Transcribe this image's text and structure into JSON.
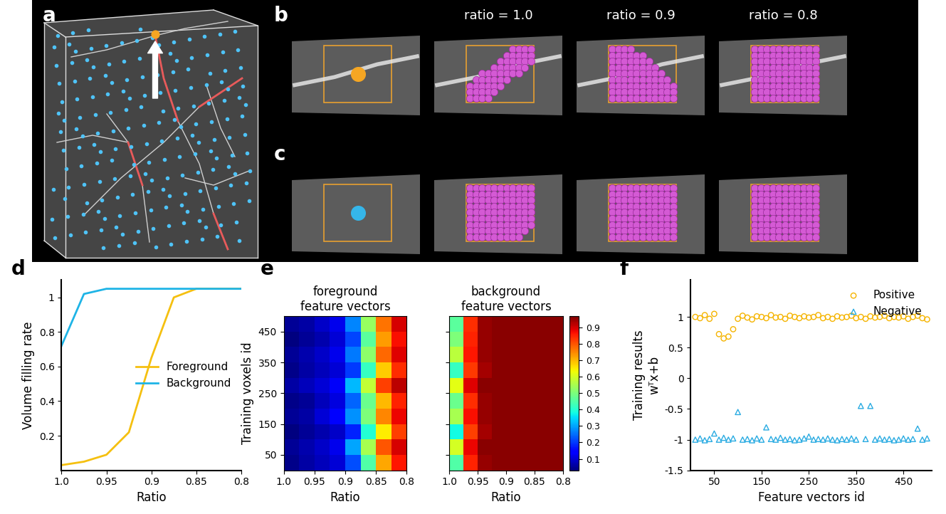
{
  "figure": {
    "panel_labels": [
      "a",
      "b",
      "c",
      "d",
      "e",
      "f"
    ],
    "column_titles": [
      "ratio = 1.0",
      "ratio = 0.9",
      "ratio = 0.8"
    ]
  },
  "chart_data": [
    {
      "type": "line",
      "xlabel": "Ratio",
      "ylabel": "Volume filling rate",
      "x": [
        1.0,
        0.975,
        0.95,
        0.925,
        0.9,
        0.875,
        0.85,
        0.825,
        0.8
      ],
      "series": [
        {
          "name": "Foreground",
          "color": "#f5c010",
          "values": [
            0.03,
            0.05,
            0.09,
            0.22,
            0.65,
            1.0,
            1.05,
            1.05,
            1.05
          ]
        },
        {
          "name": "Background",
          "color": "#1eb4e6",
          "values": [
            0.72,
            1.02,
            1.05,
            1.05,
            1.05,
            1.05,
            1.05,
            1.05,
            1.05
          ]
        }
      ],
      "xlim": [
        1.0,
        0.8
      ],
      "xticks": [
        1.0,
        0.95,
        0.9,
        0.85,
        0.8
      ],
      "ylim": [
        0,
        1.1
      ],
      "yticks": [
        0.2,
        0.4,
        0.6,
        0.8,
        1
      ],
      "legend": "center right"
    },
    {
      "type": "heatmap",
      "title": "foreground\nfeature vectors",
      "xlabel": "Ratio",
      "ylabel": "Training voxels id",
      "x_edges": [
        1.0,
        0.975,
        0.95,
        0.925,
        0.9,
        0.875,
        0.85,
        0.825,
        0.8
      ],
      "y_edges": [
        0,
        50,
        100,
        150,
        200,
        250,
        300,
        350,
        400,
        450,
        500
      ],
      "cells": [
        [
          0.04,
          0.06,
          0.08,
          0.1,
          0.22,
          0.45,
          0.72,
          0.86
        ],
        [
          0.05,
          0.07,
          0.09,
          0.12,
          0.3,
          0.55,
          0.8,
          0.9
        ],
        [
          0.03,
          0.05,
          0.07,
          0.09,
          0.18,
          0.4,
          0.65,
          0.82
        ],
        [
          0.05,
          0.06,
          0.1,
          0.14,
          0.28,
          0.5,
          0.75,
          0.88
        ],
        [
          0.04,
          0.05,
          0.08,
          0.11,
          0.24,
          0.48,
          0.7,
          0.85
        ],
        [
          0.06,
          0.08,
          0.1,
          0.13,
          0.32,
          0.58,
          0.82,
          0.92
        ],
        [
          0.04,
          0.06,
          0.08,
          0.1,
          0.2,
          0.42,
          0.68,
          0.84
        ],
        [
          0.05,
          0.07,
          0.09,
          0.12,
          0.26,
          0.52,
          0.78,
          0.89
        ],
        [
          0.03,
          0.05,
          0.07,
          0.1,
          0.21,
          0.46,
          0.73,
          0.87
        ],
        [
          0.05,
          0.06,
          0.09,
          0.12,
          0.27,
          0.53,
          0.77,
          0.9
        ]
      ],
      "color_range": [
        0.03,
        0.97
      ],
      "xlim": [
        1.0,
        0.8
      ],
      "xticks": [
        1.0,
        0.95,
        0.9,
        0.85,
        0.8
      ],
      "ylim": [
        0,
        500
      ],
      "yticks": [
        50,
        150,
        250,
        350,
        450
      ]
    },
    {
      "type": "heatmap",
      "title": "background\nfeature vectors",
      "xlabel": "Ratio",
      "x_edges": [
        1.0,
        0.975,
        0.95,
        0.925,
        0.9,
        0.875,
        0.85,
        0.825,
        0.8
      ],
      "y_edges": [
        0,
        50,
        100,
        150,
        200,
        250,
        300,
        350,
        400,
        450,
        500
      ],
      "cells": [
        [
          0.45,
          0.85,
          0.95,
          0.96,
          0.96,
          0.96,
          0.96,
          0.96
        ],
        [
          0.6,
          0.88,
          0.96,
          0.96,
          0.96,
          0.96,
          0.96,
          0.96
        ],
        [
          0.38,
          0.82,
          0.94,
          0.96,
          0.96,
          0.96,
          0.96,
          0.96
        ],
        [
          0.55,
          0.87,
          0.95,
          0.96,
          0.96,
          0.96,
          0.96,
          0.96
        ],
        [
          0.48,
          0.84,
          0.95,
          0.96,
          0.96,
          0.96,
          0.96,
          0.96
        ],
        [
          0.62,
          0.89,
          0.96,
          0.96,
          0.96,
          0.96,
          0.96,
          0.96
        ],
        [
          0.42,
          0.83,
          0.94,
          0.96,
          0.96,
          0.96,
          0.96,
          0.96
        ],
        [
          0.57,
          0.86,
          0.95,
          0.96,
          0.96,
          0.96,
          0.96,
          0.96
        ],
        [
          0.5,
          0.85,
          0.95,
          0.96,
          0.96,
          0.96,
          0.96,
          0.96
        ],
        [
          0.46,
          0.84,
          0.95,
          0.96,
          0.96,
          0.96,
          0.96,
          0.96
        ]
      ],
      "color_range": [
        0.03,
        0.97
      ],
      "colorbar_ticks": [
        0.1,
        0.2,
        0.3,
        0.4,
        0.5,
        0.6,
        0.7,
        0.8,
        0.9
      ],
      "xlim": [
        1.0,
        0.8
      ],
      "xticks": [
        1.0,
        0.95,
        0.9,
        0.85,
        0.8
      ],
      "ylim": [
        0,
        500
      ],
      "yticks": [
        50,
        150,
        250,
        350,
        450
      ],
      "tick_labels": "x"
    },
    {
      "type": "scatter",
      "xlabel": "Feature vectors id",
      "ylabel": "Training results\nwᵀx+b",
      "x": [
        10,
        20,
        30,
        40,
        50,
        60,
        70,
        80,
        90,
        100,
        110,
        120,
        130,
        140,
        150,
        160,
        170,
        180,
        190,
        200,
        210,
        220,
        230,
        240,
        250,
        260,
        270,
        280,
        290,
        300,
        310,
        320,
        330,
        340,
        350,
        360,
        370,
        380,
        390,
        400,
        410,
        420,
        430,
        440,
        450,
        460,
        470,
        480,
        490,
        500
      ],
      "series": [
        {
          "name": "Positive",
          "color": "#f5b400",
          "marker": "circle",
          "values": [
            1.0,
            0.98,
            1.03,
            0.97,
            1.05,
            0.72,
            0.65,
            0.68,
            0.8,
            0.97,
            1.02,
            0.99,
            0.96,
            1.01,
            1.0,
            0.98,
            1.03,
            0.99,
            1.0,
            0.97,
            1.02,
            1.0,
            0.98,
            1.01,
            0.99,
            1.0,
            1.03,
            0.98,
            1.0,
            0.97,
            1.01,
            0.99,
            1.0,
            1.02,
            0.98,
            1.0,
            0.97,
            1.01,
            0.99,
            1.0,
            1.02,
            0.98,
            1.0,
            0.99,
            1.01,
            0.97,
            1.0,
            1.02,
            0.98,
            0.96
          ]
        },
        {
          "name": "Negative",
          "color": "#29abe2",
          "marker": "triangle",
          "values": [
            -1.0,
            -0.98,
            -1.01,
            -0.99,
            -0.9,
            -1.0,
            -0.97,
            -1.0,
            -0.98,
            -0.55,
            -1.0,
            -0.99,
            -1.01,
            -0.98,
            -1.0,
            -0.8,
            -0.99,
            -1.0,
            -0.97,
            -1.0,
            -0.99,
            -1.01,
            -1.0,
            -0.98,
            -0.95,
            -1.0,
            -0.99,
            -1.0,
            -0.98,
            -1.0,
            -1.01,
            -0.99,
            -1.0,
            -0.98,
            -1.0,
            -0.45,
            -0.99,
            -0.45,
            -1.0,
            -0.98,
            -1.0,
            -0.99,
            -1.01,
            -1.0,
            -0.98,
            -1.0,
            -0.99,
            -0.82,
            -1.0,
            -0.98
          ]
        }
      ],
      "xlim": [
        0,
        510
      ],
      "xticks": [
        50,
        150,
        250,
        350,
        450
      ],
      "ylim": [
        -1.5,
        1.6
      ],
      "yticks": [
        -1.5,
        -1,
        -0.5,
        0,
        0.5,
        1
      ],
      "legend": "upper right"
    }
  ]
}
